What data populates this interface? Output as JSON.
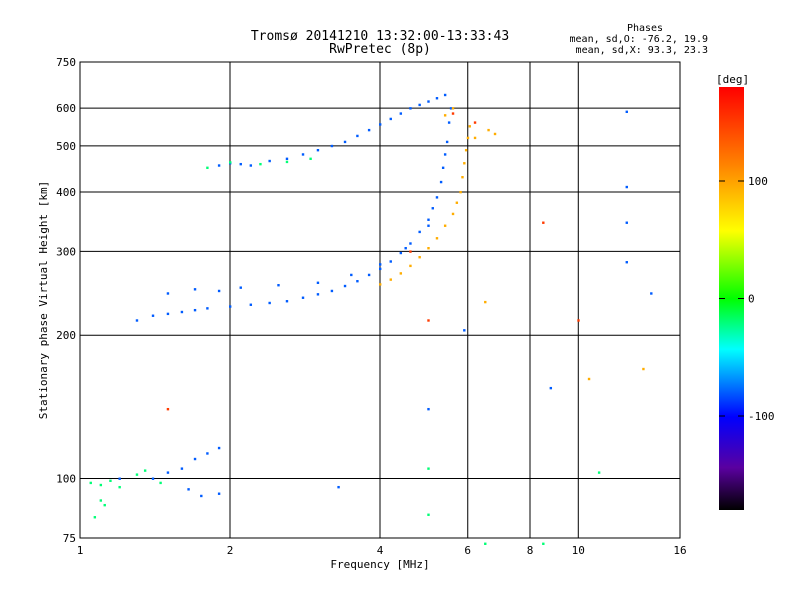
{
  "chart_data": {
    "type": "scatter",
    "title": "Tromsø 20141210 13:32:00-13:33:43",
    "subtitle": "RwPretec (8p)",
    "xlabel": "Frequency [MHz]",
    "ylabel": "Stationary phase Virtual Height [km]",
    "x_scale": "log",
    "y_scale": "log",
    "xlim": [
      1,
      16
    ],
    "ylim": [
      75,
      750
    ],
    "x_ticks": [
      1,
      2,
      4,
      6,
      8,
      10,
      16
    ],
    "x_tick_labels": [
      "1",
      "2",
      "4",
      "6",
      "8",
      "10",
      "16"
    ],
    "y_ticks": [
      75,
      100,
      200,
      300,
      400,
      500,
      600,
      750
    ],
    "y_tick_labels": [
      "75",
      "100",
      "200",
      "300",
      "400",
      "500",
      "600",
      "750"
    ],
    "grid": true,
    "info": {
      "heading": "Phases",
      "line1": "mean, sd,O: -76.2, 19.9",
      "line2": "mean, sd,X:  93.3, 23.3"
    },
    "colorbar": {
      "label": "[deg]",
      "range": [
        -180,
        180
      ],
      "ticks": [
        100,
        0,
        -100
      ],
      "tick_labels": [
        "100",
        "0",
        "-100"
      ]
    },
    "series": [
      {
        "phase_deg": -80,
        "points": [
          [
            1.9,
            455
          ],
          [
            2.0,
            460
          ],
          [
            2.1,
            458
          ],
          [
            2.2,
            455
          ],
          [
            2.4,
            465
          ],
          [
            2.6,
            470
          ],
          [
            2.8,
            480
          ],
          [
            3.0,
            490
          ],
          [
            3.2,
            500
          ],
          [
            3.4,
            510
          ],
          [
            3.6,
            525
          ],
          [
            3.8,
            540
          ],
          [
            4.0,
            555
          ],
          [
            4.2,
            570
          ],
          [
            4.4,
            585
          ],
          [
            4.6,
            600
          ],
          [
            4.8,
            610
          ],
          [
            5.0,
            620
          ],
          [
            5.2,
            630
          ],
          [
            5.4,
            640
          ],
          [
            1.4,
            220
          ],
          [
            1.5,
            222
          ],
          [
            1.6,
            224
          ],
          [
            1.7,
            226
          ],
          [
            1.8,
            228
          ],
          [
            2.0,
            230
          ],
          [
            2.2,
            232
          ],
          [
            2.4,
            234
          ],
          [
            2.6,
            236
          ],
          [
            2.8,
            240
          ],
          [
            3.0,
            244
          ],
          [
            3.2,
            248
          ],
          [
            3.4,
            254
          ],
          [
            3.6,
            260
          ],
          [
            3.8,
            268
          ],
          [
            4.0,
            276
          ],
          [
            4.2,
            286
          ],
          [
            4.4,
            298
          ],
          [
            4.6,
            312
          ],
          [
            4.8,
            330
          ],
          [
            5.0,
            350
          ],
          [
            5.1,
            370
          ],
          [
            5.2,
            390
          ],
          [
            5.3,
            420
          ],
          [
            5.35,
            450
          ],
          [
            5.4,
            480
          ],
          [
            5.45,
            510
          ],
          [
            5.5,
            560
          ],
          [
            5.55,
            600
          ],
          [
            1.5,
            245
          ],
          [
            1.7,
            250
          ],
          [
            1.9,
            248
          ],
          [
            2.1,
            252
          ],
          [
            2.5,
            255
          ],
          [
            3.0,
            258
          ],
          [
            3.5,
            268
          ],
          [
            4.0,
            282
          ],
          [
            4.5,
            305
          ],
          [
            5.0,
            340
          ],
          [
            1.3,
            215
          ],
          [
            1.4,
            100
          ],
          [
            1.5,
            103
          ],
          [
            1.6,
            105
          ],
          [
            1.7,
            110
          ],
          [
            1.8,
            113
          ],
          [
            1.9,
            116
          ],
          [
            1.65,
            95
          ],
          [
            1.75,
            92
          ],
          [
            1.9,
            93
          ],
          [
            3.3,
            96
          ],
          [
            5.0,
            140
          ],
          [
            8.8,
            155
          ],
          [
            12.5,
            590
          ],
          [
            12.5,
            410
          ],
          [
            12.5,
            345
          ],
          [
            12.5,
            285
          ],
          [
            14.0,
            245
          ],
          [
            5.9,
            205
          ],
          [
            1.2,
            100
          ]
        ]
      },
      {
        "phase_deg": -20,
        "points": [
          [
            1.05,
            98
          ],
          [
            1.1,
            97
          ],
          [
            1.15,
            99
          ],
          [
            1.2,
            96
          ],
          [
            1.1,
            90
          ],
          [
            1.12,
            88
          ],
          [
            1.07,
            83
          ],
          [
            1.3,
            102
          ],
          [
            1.35,
            104
          ],
          [
            1.45,
            98
          ],
          [
            5.0,
            105
          ],
          [
            5.0,
            84
          ],
          [
            11.0,
            103
          ],
          [
            6.5,
            73
          ],
          [
            8.5,
            73
          ],
          [
            1.8,
            450
          ],
          [
            2.0,
            462
          ],
          [
            2.3,
            458
          ],
          [
            2.6,
            463
          ],
          [
            2.9,
            470
          ]
        ]
      },
      {
        "phase_deg": 95,
        "points": [
          [
            4.0,
            256
          ],
          [
            4.2,
            262
          ],
          [
            4.4,
            270
          ],
          [
            4.6,
            280
          ],
          [
            4.8,
            292
          ],
          [
            5.0,
            305
          ],
          [
            5.2,
            320
          ],
          [
            5.4,
            340
          ],
          [
            5.6,
            360
          ],
          [
            5.7,
            380
          ],
          [
            5.8,
            400
          ],
          [
            5.85,
            430
          ],
          [
            5.9,
            460
          ],
          [
            5.95,
            490
          ],
          [
            6.0,
            520
          ],
          [
            6.05,
            550
          ],
          [
            5.4,
            580
          ],
          [
            5.6,
            600
          ],
          [
            6.2,
            520
          ],
          [
            6.6,
            540
          ],
          [
            6.5,
            235
          ],
          [
            10.5,
            162
          ],
          [
            13.5,
            170
          ],
          [
            6.8,
            530
          ]
        ]
      },
      {
        "phase_deg": 150,
        "points": [
          [
            1.5,
            140
          ],
          [
            5.0,
            215
          ],
          [
            10.0,
            215
          ],
          [
            8.5,
            345
          ],
          [
            5.6,
            585
          ],
          [
            6.2,
            560
          ],
          [
            4.6,
            300
          ]
        ]
      }
    ]
  }
}
